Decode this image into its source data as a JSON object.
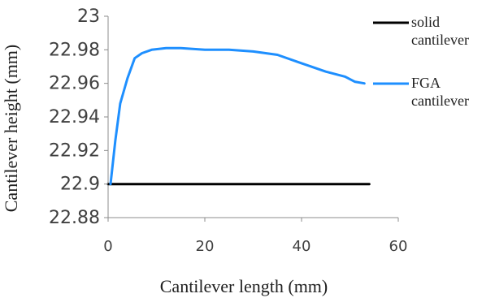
{
  "chart_data": {
    "type": "line",
    "title": "",
    "xlabel": "Cantilever length (mm)",
    "ylabel": "Cantilever height (mm)",
    "xlim": [
      0,
      60
    ],
    "ylim": [
      22.88,
      23
    ],
    "x_ticks": [
      0,
      20,
      40,
      60
    ],
    "x_tick_labels": [
      "0",
      "20",
      "40",
      "60"
    ],
    "y_ticks": [
      22.88,
      22.9,
      22.92,
      22.94,
      22.96,
      22.98,
      23
    ],
    "y_tick_labels": [
      "22.88",
      "22.9",
      "22.92",
      "22.94",
      "22.96",
      "22.98",
      "23"
    ],
    "grid": false,
    "legend_position": "right",
    "series": [
      {
        "name": "solid cantilever",
        "legend_lines": [
          "solid",
          "cantilever"
        ],
        "color": "#000000",
        "points": [
          [
            0,
            22.9
          ],
          [
            54,
            22.9
          ]
        ]
      },
      {
        "name": "FGA cantilever",
        "legend_lines": [
          "FGA",
          "cantilever"
        ],
        "color": "#1e8fff",
        "points": [
          [
            0.5,
            22.9
          ],
          [
            1.5,
            22.926
          ],
          [
            2.5,
            22.948
          ],
          [
            4,
            22.963
          ],
          [
            5.5,
            22.975
          ],
          [
            7,
            22.978
          ],
          [
            9,
            22.98
          ],
          [
            12,
            22.981
          ],
          [
            15,
            22.981
          ],
          [
            20,
            22.98
          ],
          [
            25,
            22.98
          ],
          [
            30,
            22.979
          ],
          [
            35,
            22.977
          ],
          [
            40,
            22.972
          ],
          [
            45,
            22.967
          ],
          [
            49,
            22.964
          ],
          [
            51,
            22.961
          ],
          [
            53,
            22.96
          ]
        ]
      }
    ]
  }
}
